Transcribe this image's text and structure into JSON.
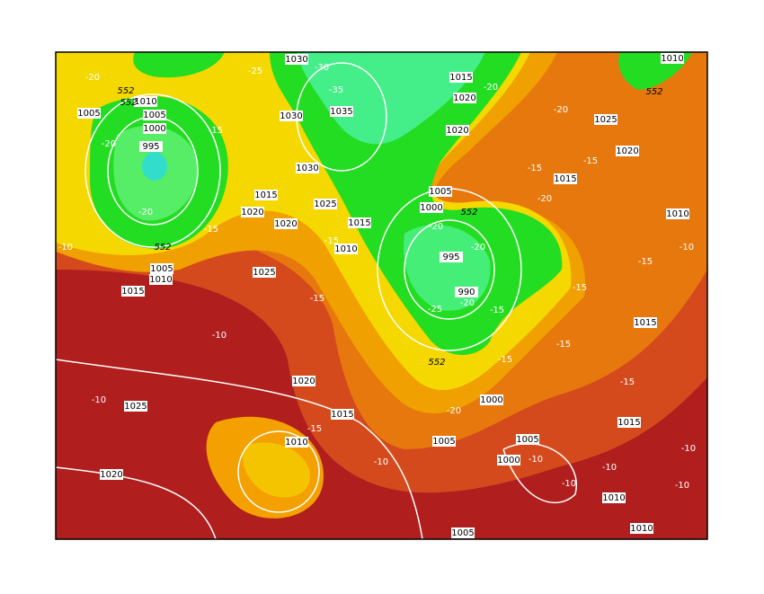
{
  "isobar_labels": [
    "1030",
    "1015",
    "1020",
    "1010",
    "1005",
    "1005",
    "1000",
    "995",
    "1035",
    "1030",
    "1020",
    "1025",
    "1020",
    "1015",
    "1030",
    "1015",
    "1020",
    "1020",
    "1025",
    "1015",
    "1010",
    "1005",
    "1000",
    "995",
    "990",
    "1005",
    "1010",
    "1015",
    "1025",
    "1010",
    "1015",
    "1020",
    "1025",
    "1015",
    "1010",
    "1000",
    "1005",
    "1005",
    "1000",
    "1015",
    "1020",
    "1010",
    "1010",
    "1005",
    "1010"
  ],
  "temperature_labels": [
    "-20",
    "-25",
    "-30",
    "-35",
    "-20",
    "-20",
    "-15",
    "-20",
    "-20",
    "-15",
    "-15",
    "-15",
    "-15",
    "-20",
    "-20",
    "-20",
    "-20",
    "-25",
    "-15",
    "-15",
    "-10",
    "-10",
    "-15",
    "-15",
    "-10",
    "-15",
    "-15",
    "-15",
    "-10",
    "-20",
    "-15",
    "-10",
    "-10",
    "-10",
    "-10",
    "-10",
    "-10"
  ],
  "thickness_labels": [
    "552",
    "552",
    "552",
    "552",
    "552",
    "552"
  ]
}
